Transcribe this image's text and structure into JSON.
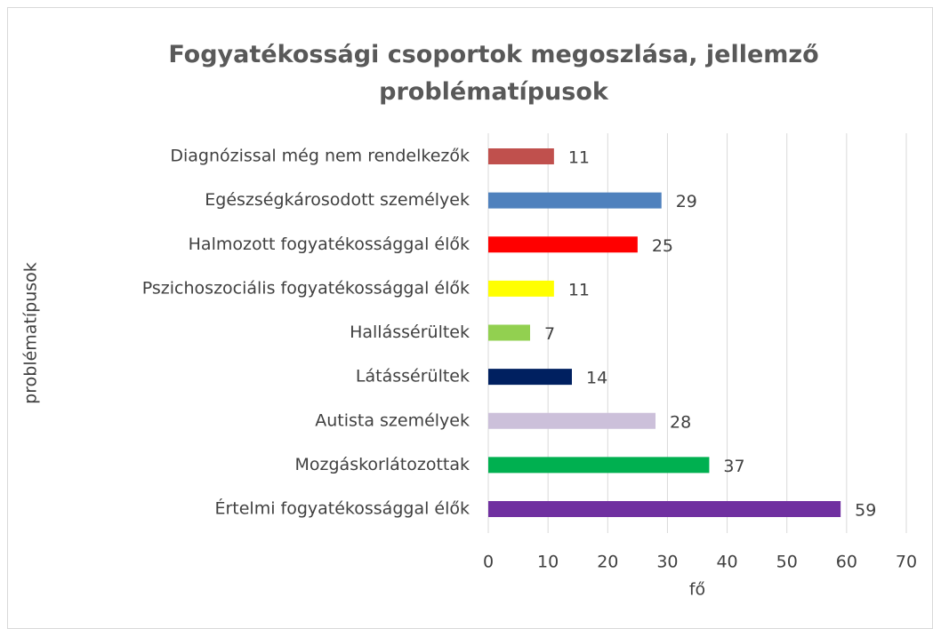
{
  "chart_data": {
    "type": "bar",
    "orientation": "horizontal",
    "title": "Fogyatékossági csoportok megoszlása, jellemző problématípusok",
    "xlabel": "fő",
    "ylabel": "problématípusok",
    "categories": [
      "Diagnózissal még nem rendelkezők",
      "Egészségkárosodott személyek",
      "Halmozott fogyatékossággal élők",
      "Pszichoszociális fogyatékossággal élők",
      "Hallássérültek",
      "Látássérültek",
      "Autista személyek",
      "Mozgáskorlátozottak",
      "Értelmi fogyatékossággal élők"
    ],
    "values": [
      11,
      29,
      25,
      11,
      7,
      14,
      28,
      37,
      59
    ],
    "colors": [
      "#c0504d",
      "#4f81bd",
      "#ff0000",
      "#ffff00",
      "#92d050",
      "#002060",
      "#ccc0da",
      "#00b050",
      "#7030a0"
    ],
    "xlim": [
      0,
      70
    ],
    "xticks": [
      0,
      10,
      20,
      30,
      40,
      50,
      60,
      70
    ],
    "grid": true
  }
}
